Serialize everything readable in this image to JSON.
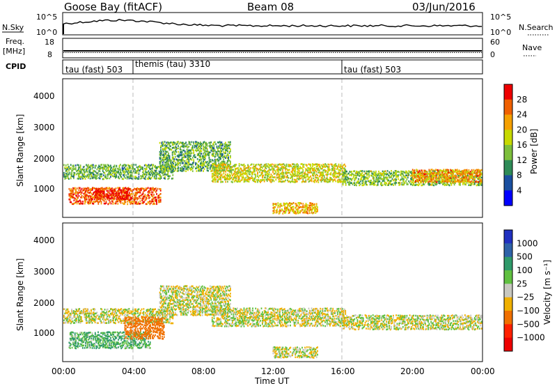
{
  "header": {
    "station": "Goose Bay (fitACF)",
    "beam": "Beam 08",
    "date": "03/Jun/2016"
  },
  "panels": {
    "nsky_label": "N.Sky",
    "nsky_ticks": [
      "10^5",
      "10^0"
    ],
    "nsearch_label": "N.Search",
    "nsearch_ticks": [
      "10^5",
      "10^0"
    ],
    "freq_label_1": "Freq.",
    "freq_label_2": "[MHz]",
    "freq_ticks": [
      "18",
      "8"
    ],
    "nave_label": "Nave",
    "nave_ticks": [
      "60",
      "0"
    ],
    "cpid_label": "CPID",
    "cpid_segments": [
      {
        "label": "tau (fast) 503",
        "start_h": 0
      },
      {
        "label": "themis (tau) 3310",
        "start_h": 4
      },
      {
        "label": "tau (fast) 503",
        "start_h": 16
      }
    ]
  },
  "axes": {
    "y_label": "Slant Range [km]",
    "x_label": "Time UT",
    "x_ticks": [
      "00:00",
      "04:00",
      "08:00",
      "12:00",
      "16:00",
      "20:00",
      "00:00"
    ],
    "y_ticks": [
      "1000",
      "2000",
      "3000",
      "4000"
    ]
  },
  "colorbars": {
    "power": {
      "label": "Power [dB]",
      "ticks": [
        "4",
        "8",
        "12",
        "16",
        "20",
        "24",
        "28"
      ],
      "colors": [
        "#0000ff",
        "#1a4fa0",
        "#2e8b57",
        "#7dbf3c",
        "#c7d900",
        "#f5a000",
        "#f06000",
        "#ee0000"
      ]
    },
    "velocity": {
      "label": "Velocity [m s⁻¹]",
      "ticks": [
        "1000",
        "500",
        "100",
        "25",
        "−25",
        "−100",
        "−500",
        "−1000"
      ],
      "colors": [
        "#2030c0",
        "#2e62a8",
        "#2f9a6a",
        "#60c040",
        "#c8c8c0",
        "#f0b000",
        "#f07000",
        "#ff2000",
        "#ee0000"
      ]
    }
  },
  "chart_data": [
    {
      "type": "heatmap",
      "title": "",
      "quantity": "Power",
      "units": "dB",
      "xlabel": "Time UT",
      "ylabel": "Slant Range [km]",
      "xlim_hours": [
        0,
        24
      ],
      "ylim_km": [
        180,
        4600
      ],
      "clim": [
        0,
        30
      ],
      "bands": [
        {
          "t0": 0.0,
          "t1": 6.3,
          "r0": 1450,
          "r1": 1900,
          "value": 12
        },
        {
          "t0": 0.3,
          "t1": 5.6,
          "r0": 650,
          "r1": 1200,
          "value": 24
        },
        {
          "t0": 1.8,
          "t1": 3.8,
          "r0": 800,
          "r1": 1150,
          "value": 28
        },
        {
          "t0": 5.5,
          "t1": 9.6,
          "r0": 1700,
          "r1": 2650,
          "value": 12
        },
        {
          "t0": 8.5,
          "t1": 16.2,
          "r0": 1350,
          "r1": 1950,
          "value": 17
        },
        {
          "t0": 12.0,
          "t1": 14.6,
          "r0": 350,
          "r1": 700,
          "value": 20
        },
        {
          "t0": 16.0,
          "t1": 24.0,
          "r0": 1250,
          "r1": 1700,
          "value": 14
        },
        {
          "t0": 20.0,
          "t1": 24.0,
          "r0": 1350,
          "r1": 1750,
          "value": 22
        }
      ]
    },
    {
      "type": "heatmap",
      "title": "",
      "quantity": "Velocity",
      "units": "m s-1",
      "xlabel": "Time UT",
      "ylabel": "Slant Range [km]",
      "xlim_hours": [
        0,
        24
      ],
      "ylim_km": [
        180,
        4600
      ],
      "clim": [
        -1000,
        1000
      ],
      "bands": [
        {
          "t0": 0.0,
          "t1": 6.3,
          "r0": 1450,
          "r1": 1900,
          "value": 0
        },
        {
          "t0": 0.3,
          "t1": 5.0,
          "r0": 650,
          "r1": 1200,
          "value": 100
        },
        {
          "t0": 3.5,
          "t1": 5.8,
          "r0": 950,
          "r1": 1650,
          "value": -300
        },
        {
          "t0": 5.5,
          "t1": 9.6,
          "r0": 1700,
          "r1": 2650,
          "value": 0
        },
        {
          "t0": 8.5,
          "t1": 16.2,
          "r0": 1350,
          "r1": 1950,
          "value": 0
        },
        {
          "t0": 12.0,
          "t1": 14.6,
          "r0": 350,
          "r1": 700,
          "value": 0
        },
        {
          "t0": 16.0,
          "t1": 24.0,
          "r0": 1250,
          "r1": 1700,
          "value": 0
        }
      ]
    }
  ]
}
